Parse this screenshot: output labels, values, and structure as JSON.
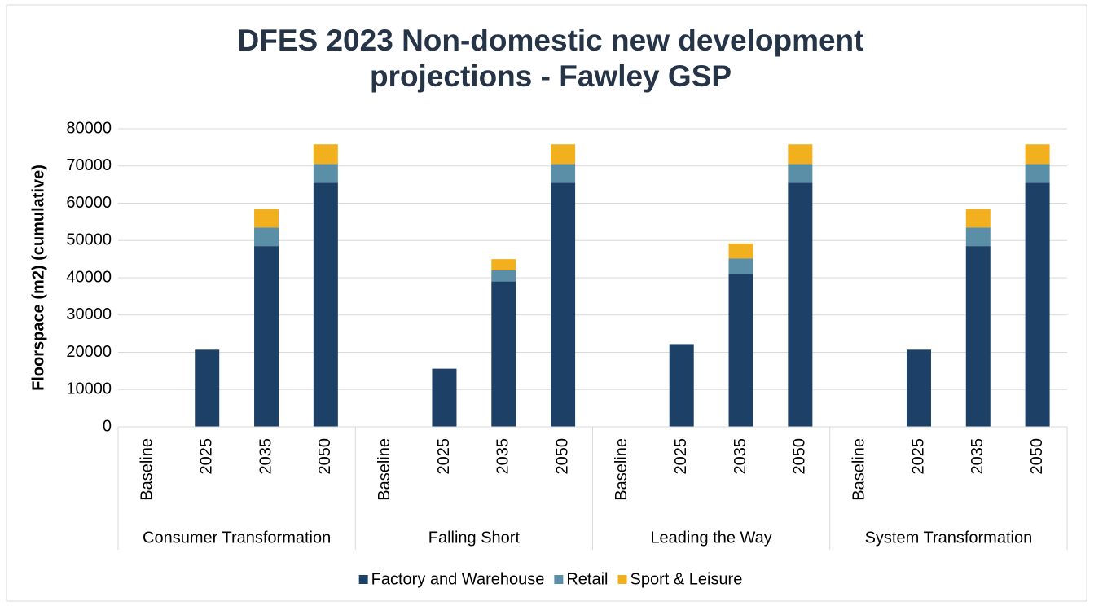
{
  "chart_data": {
    "type": "stacked_bar",
    "title": "DFES 2023 Non-domestic new development projections - Fawley GSP",
    "y_label": "Floorspace (m2) (cumulative)",
    "groups": [
      {
        "name": "Consumer Transformation",
        "categories": [
          "Baseline",
          "2025",
          "2035",
          "2050"
        ]
      },
      {
        "name": "Falling Short",
        "categories": [
          "Baseline",
          "2025",
          "2035",
          "2050"
        ]
      },
      {
        "name": "Leading the Way",
        "categories": [
          "Baseline",
          "2025",
          "2035",
          "2050"
        ]
      },
      {
        "name": "System Transformation",
        "categories": [
          "Baseline",
          "2025",
          "2035",
          "2050"
        ]
      }
    ],
    "series": [
      {
        "name": "Factory and Warehouse",
        "color": "#1d4166",
        "values": [
          0,
          20700,
          48500,
          65500,
          0,
          15600,
          39000,
          65500,
          0,
          22200,
          41000,
          65500,
          0,
          20700,
          48500,
          65500
        ]
      },
      {
        "name": "Retail",
        "color": "#5b8fa8",
        "values": [
          0,
          0,
          5000,
          5000,
          0,
          0,
          3000,
          5000,
          0,
          0,
          4200,
          5000,
          0,
          0,
          5000,
          5000
        ]
      },
      {
        "name": "Sport & Leisure",
        "color": "#f2b01e",
        "values": [
          0,
          0,
          5000,
          5300,
          0,
          0,
          3000,
          5300,
          0,
          0,
          4000,
          5300,
          0,
          0,
          5000,
          5300
        ]
      }
    ],
    "ylim": [
      0,
      80000
    ],
    "yticks": [
      0,
      10000,
      20000,
      30000,
      40000,
      50000,
      60000,
      70000,
      80000
    ],
    "grid": true,
    "legend": "bottom"
  }
}
